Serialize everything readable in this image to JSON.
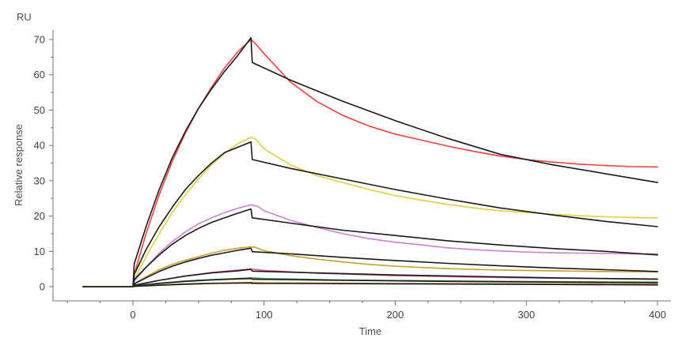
{
  "chart_data": {
    "type": "line",
    "title": "",
    "xlabel": "Time",
    "ylabel": "Relative response",
    "y_unit": "RU",
    "xlim": [
      -50,
      410
    ],
    "ylim": [
      -1,
      72
    ],
    "x_ticks": [
      0,
      100,
      200,
      300,
      400
    ],
    "y_ticks": [
      0,
      10,
      20,
      30,
      40,
      50,
      60,
      70
    ],
    "grid": false,
    "legend": "none",
    "series": [
      {
        "color": "#f04040",
        "values": [
          [
            -38,
            0
          ],
          [
            0,
            0
          ],
          [
            1,
            3.5
          ],
          [
            10,
            15
          ],
          [
            20,
            26
          ],
          [
            30,
            35.5
          ],
          [
            40,
            43.5
          ],
          [
            50,
            50.5
          ],
          [
            60,
            56.5
          ],
          [
            70,
            62
          ],
          [
            80,
            66.5
          ],
          [
            90,
            70
          ],
          [
            93,
            69
          ],
          [
            100,
            66
          ],
          [
            120,
            58
          ],
          [
            140,
            52.5
          ],
          [
            160,
            48.5
          ],
          [
            180,
            45.5
          ],
          [
            200,
            43.2
          ],
          [
            220,
            41.5
          ],
          [
            240,
            39.8
          ],
          [
            260,
            38.3
          ],
          [
            280,
            37
          ],
          [
            300,
            36
          ],
          [
            320,
            35.3
          ],
          [
            340,
            34.7
          ],
          [
            360,
            34.3
          ],
          [
            380,
            34
          ],
          [
            400,
            33.9
          ]
        ]
      },
      {
        "color": "#1a1a1a",
        "values": [
          [
            -38,
            0
          ],
          [
            0,
            0
          ],
          [
            1,
            6.5
          ],
          [
            10,
            17
          ],
          [
            20,
            27.5
          ],
          [
            30,
            36.5
          ],
          [
            40,
            44
          ],
          [
            50,
            50.5
          ],
          [
            60,
            56
          ],
          [
            70,
            61
          ],
          [
            80,
            65.5
          ],
          [
            90,
            70.5
          ],
          [
            91,
            63.5
          ],
          [
            120,
            58.5
          ],
          [
            160,
            52.5
          ],
          [
            200,
            47
          ],
          [
            240,
            42
          ],
          [
            280,
            37.5
          ],
          [
            320,
            34.5
          ],
          [
            360,
            32
          ],
          [
            400,
            29.5
          ]
        ]
      },
      {
        "color": "#e0d040",
        "values": [
          [
            -38,
            0
          ],
          [
            0,
            0
          ],
          [
            1,
            2
          ],
          [
            10,
            8.5
          ],
          [
            20,
            15
          ],
          [
            30,
            21
          ],
          [
            40,
            26
          ],
          [
            50,
            30.5
          ],
          [
            60,
            34.5
          ],
          [
            70,
            37.8
          ],
          [
            80,
            40.5
          ],
          [
            90,
            42.3
          ],
          [
            93,
            42
          ],
          [
            100,
            39
          ],
          [
            120,
            34.5
          ],
          [
            140,
            31.5
          ],
          [
            160,
            29.5
          ],
          [
            180,
            27.5
          ],
          [
            200,
            25.8
          ],
          [
            220,
            24.5
          ],
          [
            240,
            23.3
          ],
          [
            260,
            22.3
          ],
          [
            280,
            21.5
          ],
          [
            300,
            21
          ],
          [
            320,
            20.5
          ],
          [
            340,
            20.1
          ],
          [
            360,
            19.8
          ],
          [
            380,
            19.6
          ],
          [
            400,
            19.5
          ]
        ]
      },
      {
        "color": "#1a1a1a",
        "values": [
          [
            -38,
            0
          ],
          [
            0,
            0
          ],
          [
            1,
            3.5
          ],
          [
            10,
            10.5
          ],
          [
            20,
            17
          ],
          [
            30,
            22.5
          ],
          [
            40,
            27.5
          ],
          [
            50,
            31.5
          ],
          [
            60,
            35
          ],
          [
            70,
            38
          ],
          [
            80,
            39.5
          ],
          [
            90,
            41
          ],
          [
            91,
            36
          ],
          [
            120,
            33.5
          ],
          [
            160,
            30.5
          ],
          [
            200,
            27.5
          ],
          [
            240,
            24.8
          ],
          [
            280,
            22.3
          ],
          [
            320,
            20.3
          ],
          [
            360,
            18.5
          ],
          [
            400,
            17
          ]
        ]
      },
      {
        "color": "#d080d0",
        "values": [
          [
            -38,
            0
          ],
          [
            0,
            0
          ],
          [
            1,
            1.5
          ],
          [
            10,
            5.5
          ],
          [
            20,
            9.5
          ],
          [
            30,
            12.8
          ],
          [
            40,
            15.5
          ],
          [
            50,
            17.8
          ],
          [
            60,
            19.5
          ],
          [
            70,
            21
          ],
          [
            80,
            22.2
          ],
          [
            90,
            23.2
          ],
          [
            95,
            22.8
          ],
          [
            100,
            21.5
          ],
          [
            120,
            18.8
          ],
          [
            140,
            16.8
          ],
          [
            160,
            15
          ],
          [
            180,
            13.6
          ],
          [
            200,
            12.6
          ],
          [
            220,
            11.8
          ],
          [
            240,
            11
          ],
          [
            260,
            10.5
          ],
          [
            280,
            10.1
          ],
          [
            300,
            9.8
          ],
          [
            320,
            9.6
          ],
          [
            340,
            9.5
          ],
          [
            360,
            9.4
          ],
          [
            380,
            9.3
          ],
          [
            400,
            9.3
          ]
        ]
      },
      {
        "color": "#1a1a1a",
        "values": [
          [
            -38,
            0
          ],
          [
            0,
            0
          ],
          [
            1,
            2
          ],
          [
            10,
            5.5
          ],
          [
            20,
            9
          ],
          [
            30,
            12
          ],
          [
            40,
            14.5
          ],
          [
            50,
            16.5
          ],
          [
            60,
            18.2
          ],
          [
            70,
            19.5
          ],
          [
            80,
            20.8
          ],
          [
            90,
            22
          ],
          [
            91,
            19.5
          ],
          [
            120,
            18
          ],
          [
            160,
            16
          ],
          [
            200,
            14.5
          ],
          [
            240,
            13
          ],
          [
            280,
            11.8
          ],
          [
            320,
            10.8
          ],
          [
            360,
            10
          ],
          [
            400,
            9
          ]
        ]
      },
      {
        "color": "#c8a030",
        "values": [
          [
            -38,
            0
          ],
          [
            0,
            0
          ],
          [
            1,
            0.8
          ],
          [
            10,
            2.8
          ],
          [
            20,
            4.8
          ],
          [
            30,
            6.3
          ],
          [
            40,
            7.5
          ],
          [
            50,
            8.5
          ],
          [
            60,
            9.5
          ],
          [
            70,
            10.3
          ],
          [
            80,
            10.9
          ],
          [
            90,
            11.3
          ],
          [
            93,
            11.2
          ],
          [
            100,
            10.2
          ],
          [
            120,
            8.8
          ],
          [
            140,
            7.8
          ],
          [
            160,
            7
          ],
          [
            180,
            6.3
          ],
          [
            200,
            5.8
          ],
          [
            240,
            5.1
          ],
          [
            280,
            4.7
          ],
          [
            320,
            4.5
          ],
          [
            360,
            4.3
          ],
          [
            400,
            4.2
          ]
        ]
      },
      {
        "color": "#1a1a1a",
        "values": [
          [
            -38,
            0
          ],
          [
            0,
            0
          ],
          [
            1,
            0.8
          ],
          [
            10,
            2.5
          ],
          [
            20,
            4.3
          ],
          [
            30,
            5.8
          ],
          [
            40,
            7
          ],
          [
            50,
            8
          ],
          [
            60,
            8.9
          ],
          [
            70,
            9.6
          ],
          [
            80,
            10.3
          ],
          [
            90,
            10.9
          ],
          [
            91,
            9.9
          ],
          [
            120,
            9.3
          ],
          [
            160,
            8.3
          ],
          [
            200,
            7.4
          ],
          [
            240,
            6.6
          ],
          [
            280,
            5.9
          ],
          [
            320,
            5.3
          ],
          [
            360,
            4.8
          ],
          [
            400,
            4.3
          ]
        ]
      },
      {
        "color": "#e060a0",
        "values": [
          [
            -38,
            0
          ],
          [
            0,
            0
          ],
          [
            1,
            0.3
          ],
          [
            20,
            1.8
          ],
          [
            40,
            3
          ],
          [
            60,
            4
          ],
          [
            80,
            4.7
          ],
          [
            90,
            5
          ],
          [
            100,
            4.6
          ],
          [
            140,
            3.8
          ],
          [
            200,
            3.1
          ],
          [
            260,
            2.7
          ],
          [
            320,
            2.4
          ],
          [
            400,
            2.2
          ]
        ]
      },
      {
        "color": "#1a1a1a",
        "values": [
          [
            -38,
            0
          ],
          [
            0,
            0
          ],
          [
            1,
            0.4
          ],
          [
            20,
            1.8
          ],
          [
            40,
            3
          ],
          [
            60,
            3.9
          ],
          [
            80,
            4.5
          ],
          [
            90,
            4.9
          ],
          [
            91,
            4.4
          ],
          [
            140,
            3.9
          ],
          [
            200,
            3.3
          ],
          [
            260,
            2.9
          ],
          [
            320,
            2.5
          ],
          [
            400,
            2.1
          ]
        ]
      },
      {
        "color": "#40a060",
        "values": [
          [
            -38,
            0
          ],
          [
            0,
            0
          ],
          [
            1,
            0.2
          ],
          [
            20,
            1
          ],
          [
            40,
            1.6
          ],
          [
            60,
            2
          ],
          [
            80,
            2.3
          ],
          [
            90,
            2.5
          ],
          [
            100,
            2.3
          ],
          [
            160,
            1.9
          ],
          [
            240,
            1.6
          ],
          [
            320,
            1.4
          ],
          [
            400,
            1.3
          ]
        ]
      },
      {
        "color": "#1a1a1a",
        "values": [
          [
            -38,
            0
          ],
          [
            0,
            0
          ],
          [
            1,
            0.2
          ],
          [
            20,
            0.9
          ],
          [
            40,
            1.5
          ],
          [
            60,
            1.9
          ],
          [
            80,
            2.2
          ],
          [
            90,
            2.3
          ],
          [
            91,
            2.1
          ],
          [
            160,
            1.8
          ],
          [
            240,
            1.5
          ],
          [
            320,
            1.3
          ],
          [
            400,
            1.1
          ]
        ]
      },
      {
        "color": "#e09030",
        "values": [
          [
            -38,
            0
          ],
          [
            0,
            0
          ],
          [
            1,
            0.1
          ],
          [
            20,
            0.5
          ],
          [
            40,
            0.8
          ],
          [
            60,
            1
          ],
          [
            80,
            1.15
          ],
          [
            90,
            1.2
          ],
          [
            100,
            1.1
          ],
          [
            200,
            0.9
          ],
          [
            300,
            0.8
          ],
          [
            400,
            0.7
          ]
        ]
      },
      {
        "color": "#1a1a1a",
        "values": [
          [
            -38,
            0
          ],
          [
            0,
            0
          ],
          [
            1,
            0.1
          ],
          [
            20,
            0.4
          ],
          [
            40,
            0.7
          ],
          [
            60,
            0.9
          ],
          [
            80,
            1
          ],
          [
            90,
            1.05
          ],
          [
            91,
            0.95
          ],
          [
            200,
            0.8
          ],
          [
            300,
            0.65
          ],
          [
            400,
            0.5
          ]
        ]
      }
    ]
  }
}
